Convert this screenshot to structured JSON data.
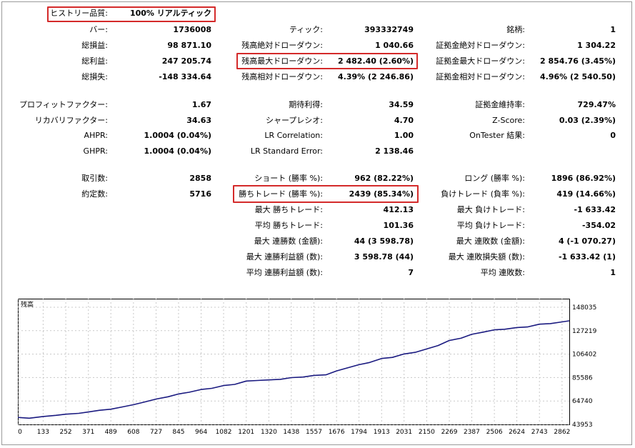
{
  "stats": {
    "c1": [
      {
        "label": "ヒストリー品質:",
        "value": "100% リアルティック"
      },
      {
        "label": "バー:",
        "value": "1736008"
      },
      {
        "label": "総損益:",
        "value": "98 871.10"
      },
      {
        "label": "総利益:",
        "value": "247 205.74"
      },
      {
        "label": "総損失:",
        "value": "-148 334.64"
      },
      {
        "label": "プロフィットファクター:",
        "value": "1.67"
      },
      {
        "label": "リカバリファクター:",
        "value": "34.63"
      },
      {
        "label": "AHPR:",
        "value": "1.0004 (0.04%)"
      },
      {
        "label": "GHPR:",
        "value": "1.0004 (0.04%)"
      },
      {
        "label": "取引数:",
        "value": "2858"
      },
      {
        "label": "約定数:",
        "value": "5716"
      }
    ],
    "c2": [
      {
        "label": "ティック:",
        "value": "393332749"
      },
      {
        "label": "残高絶対ドローダウン:",
        "value": "1 040.66"
      },
      {
        "label": "残高最大ドローダウン:",
        "value": "2 482.40 (2.60%)"
      },
      {
        "label": "残高相対ドローダウン:",
        "value": "4.39% (2 246.86)"
      },
      {
        "label": "期待利得:",
        "value": "34.59"
      },
      {
        "label": "シャープレシオ:",
        "value": "4.70"
      },
      {
        "label": "LR Correlation:",
        "value": "1.00"
      },
      {
        "label": "LR Standard Error:",
        "value": "2 138.46"
      },
      {
        "label": "ショート (勝率 %):",
        "value": "962 (82.22%)"
      },
      {
        "label": "勝ちトレード (勝率 %):",
        "value": "2439 (85.34%)"
      },
      {
        "label": "最大 勝ちトレード:",
        "value": "412.13"
      },
      {
        "label": "平均 勝ちトレード:",
        "value": "101.36"
      },
      {
        "label": "最大 連勝数 (金額):",
        "value": "44 (3 598.78)"
      },
      {
        "label": "最大 連勝利益額 (数):",
        "value": "3 598.78 (44)"
      },
      {
        "label": "平均 連勝利益額 (数):",
        "value": "7"
      }
    ],
    "c3": [
      {
        "label": "銘柄:",
        "value": "1"
      },
      {
        "label": "証拠金絶対ドローダウン:",
        "value": "1 304.22"
      },
      {
        "label": "証拠金最大ドローダウン:",
        "value": "2 854.76 (3.45%)"
      },
      {
        "label": "証拠金相対ドローダウン:",
        "value": "4.96% (2 540.50)"
      },
      {
        "label": "証拠金維持率:",
        "value": "729.47%"
      },
      {
        "label": "Z-Score:",
        "value": "0.03 (2.39%)"
      },
      {
        "label": "OnTester 結果:",
        "value": "0"
      },
      {
        "label": "ロング (勝率 %):",
        "value": "1896 (86.92%)"
      },
      {
        "label": "負けトレード (負率 %):",
        "value": "419 (14.66%)"
      },
      {
        "label": "最大 負けトレード:",
        "value": "-1 633.42"
      },
      {
        "label": "平均 負けトレード:",
        "value": "-354.02"
      },
      {
        "label": "最大 連敗数 (金額):",
        "value": "4 (-1 070.27)"
      },
      {
        "label": "最大 連敗損失額 (数):",
        "value": "-1 633.42 (1)"
      },
      {
        "label": "平均 連敗数:",
        "value": "1"
      }
    ]
  },
  "chart_data": {
    "type": "line",
    "title": "残高",
    "xlabel": "",
    "ylabel": "",
    "x_ticks": [
      0,
      133,
      252,
      371,
      489,
      608,
      727,
      845,
      964,
      1082,
      1201,
      1320,
      1438,
      1557,
      1676,
      1794,
      1913,
      2031,
      2150,
      2269,
      2387,
      2506,
      2624,
      2743,
      2862
    ],
    "y_ticks": [
      43953,
      64740,
      85586,
      106402,
      127219,
      148035
    ],
    "xlim": [
      0,
      2900
    ],
    "ylim": [
      43953,
      148035
    ],
    "grid": true,
    "line_color": "#1a1a80",
    "series": [
      {
        "name": "",
        "x": [
          0,
          60,
          133,
          200,
          252,
          320,
          371,
          430,
          489,
          550,
          608,
          670,
          727,
          790,
          845,
          900,
          964,
          1020,
          1082,
          1140,
          1201,
          1260,
          1320,
          1380,
          1438,
          1500,
          1557,
          1620,
          1676,
          1730,
          1794,
          1850,
          1913,
          1970,
          2031,
          2090,
          2150,
          2210,
          2269,
          2330,
          2387,
          2450,
          2506,
          2560,
          2624,
          2680,
          2743,
          2800,
          2862,
          2900
        ],
        "y": [
          50200,
          49500,
          51000,
          52000,
          53000,
          53800,
          55000,
          56500,
          57500,
          59500,
          61500,
          64000,
          66500,
          68500,
          71000,
          72500,
          75000,
          76000,
          78500,
          79500,
          82500,
          83000,
          83500,
          84000,
          85500,
          86000,
          87500,
          88000,
          91500,
          94000,
          97000,
          99000,
          102500,
          103500,
          106500,
          108000,
          111000,
          114000,
          118500,
          120500,
          124000,
          126000,
          128000,
          128500,
          130000,
          130500,
          133000,
          133500,
          135000,
          136000
        ]
      }
    ]
  }
}
